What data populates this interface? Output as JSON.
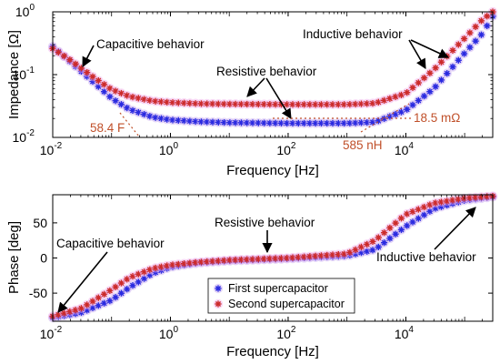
{
  "colors": {
    "first": "#2a2ae0",
    "second": "#cc2b2b",
    "first_halo": "#c8a8f0",
    "second_halo": "#f0a8e8",
    "annotation": "#c0502a",
    "arrow": "#000000"
  },
  "chart_data": [
    {
      "type": "scatter",
      "xlabel": "Frequency [Hz]",
      "ylabel": "Impedance [Ω]",
      "xscale": "log",
      "yscale": "log",
      "xlim": [
        0.01,
        300000
      ],
      "ylim": [
        0.01,
        1
      ],
      "grid": false,
      "x_ticks": [
        {
          "value": 0.01,
          "base": "10",
          "exp": "-2"
        },
        {
          "value": 1,
          "base": "10",
          "exp": "0"
        },
        {
          "value": 100,
          "base": "10",
          "exp": "2"
        },
        {
          "value": 10000,
          "base": "10",
          "exp": "4"
        }
      ],
      "y_ticks": [
        {
          "value": 0.01,
          "base": "10",
          "exp": "-2"
        },
        {
          "value": 0.1,
          "base": "10",
          "exp": "-1"
        },
        {
          "value": 1,
          "base": "10",
          "exp": "0"
        }
      ],
      "series": [
        {
          "name": "First supercapacitor",
          "points": [
            [
              0.01,
              0.28
            ],
            [
              0.02,
              0.16
            ],
            [
              0.05,
              0.075
            ],
            [
              0.1,
              0.042
            ],
            [
              0.2,
              0.028
            ],
            [
              0.5,
              0.021
            ],
            [
              1,
              0.019
            ],
            [
              3,
              0.0178
            ],
            [
              10,
              0.0172
            ],
            [
              100,
              0.0168
            ],
            [
              1000,
              0.0168
            ],
            [
              3000,
              0.0175
            ],
            [
              10000,
              0.027
            ],
            [
              30000,
              0.06
            ],
            [
              100000,
              0.22
            ],
            [
              200000,
              0.45
            ],
            [
              300000,
              0.85
            ]
          ]
        },
        {
          "name": "Second supercapacitor",
          "points": [
            [
              0.01,
              0.26
            ],
            [
              0.02,
              0.17
            ],
            [
              0.05,
              0.09
            ],
            [
              0.1,
              0.058
            ],
            [
              0.2,
              0.045
            ],
            [
              0.5,
              0.038
            ],
            [
              1,
              0.036
            ],
            [
              3,
              0.0345
            ],
            [
              10,
              0.034
            ],
            [
              100,
              0.0335
            ],
            [
              1000,
              0.0335
            ],
            [
              3000,
              0.035
            ],
            [
              10000,
              0.05
            ],
            [
              30000,
              0.12
            ],
            [
              100000,
              0.38
            ],
            [
              200000,
              0.75
            ],
            [
              300000,
              1.0
            ]
          ]
        }
      ],
      "annotations": {
        "capacitive": "Capacitive behavior",
        "resistive": "Resistive behavior",
        "inductive": "Inductive behavior",
        "cap_value": "58.4 F",
        "ind_value": "585 nH",
        "res_value": "18.5 mΩ"
      }
    },
    {
      "type": "scatter",
      "xlabel": "Frequency [Hz]",
      "ylabel": "Phase [deg]",
      "xscale": "log",
      "xlim": [
        0.01,
        300000
      ],
      "ylim": [
        -90,
        90
      ],
      "grid": false,
      "legend_position": "bottom-center",
      "x_ticks": [
        {
          "value": 0.01,
          "base": "10",
          "exp": "-2"
        },
        {
          "value": 1,
          "base": "10",
          "exp": "0"
        },
        {
          "value": 100,
          "base": "10",
          "exp": "2"
        },
        {
          "value": 10000,
          "base": "10",
          "exp": "4"
        }
      ],
      "y_ticks": [
        "50",
        "0",
        "-50"
      ],
      "series": [
        {
          "name": "First supercapacitor",
          "points": [
            [
              0.01,
              -85
            ],
            [
              0.03,
              -78
            ],
            [
              0.1,
              -60
            ],
            [
              0.2,
              -42
            ],
            [
              0.5,
              -22
            ],
            [
              1,
              -13
            ],
            [
              3,
              -7
            ],
            [
              10,
              -4
            ],
            [
              100,
              -1
            ],
            [
              1000,
              3
            ],
            [
              3000,
              12
            ],
            [
              10000,
              45
            ],
            [
              30000,
              70
            ],
            [
              100000,
              82
            ],
            [
              300000,
              87
            ]
          ]
        },
        {
          "name": "Second supercapacitor",
          "points": [
            [
              0.01,
              -83
            ],
            [
              0.03,
              -72
            ],
            [
              0.1,
              -45
            ],
            [
              0.2,
              -28
            ],
            [
              0.5,
              -15
            ],
            [
              1,
              -10
            ],
            [
              3,
              -6
            ],
            [
              10,
              -3
            ],
            [
              100,
              0
            ],
            [
              1000,
              6
            ],
            [
              3000,
              25
            ],
            [
              10000,
              62
            ],
            [
              30000,
              78
            ],
            [
              100000,
              85
            ],
            [
              300000,
              88
            ]
          ]
        }
      ],
      "annotations": {
        "capacitive": "Capacitive behavior",
        "resistive": "Resistive behavior",
        "inductive": "Inductive behavior"
      }
    }
  ]
}
